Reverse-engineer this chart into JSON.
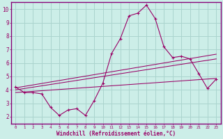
{
  "xlabel": "Windchill (Refroidissement éolien,°C)",
  "background_color": "#cceee8",
  "grid_color": "#aad4ce",
  "line_color": "#990066",
  "border_color": "#880077",
  "xlim": [
    -0.5,
    23.5
  ],
  "ylim": [
    1.5,
    10.5
  ],
  "xticks": [
    0,
    1,
    2,
    3,
    4,
    5,
    6,
    7,
    8,
    9,
    10,
    11,
    12,
    13,
    14,
    15,
    16,
    17,
    18,
    19,
    20,
    21,
    22,
    23
  ],
  "yticks": [
    2,
    3,
    4,
    5,
    6,
    7,
    8,
    9,
    10
  ],
  "x_data": [
    0,
    1,
    2,
    3,
    4,
    5,
    6,
    7,
    8,
    9,
    10,
    11,
    12,
    13,
    14,
    15,
    16,
    17,
    18,
    19,
    20,
    21,
    22,
    23
  ],
  "y_main": [
    4.2,
    3.8,
    3.8,
    3.7,
    2.7,
    2.1,
    2.5,
    2.6,
    2.1,
    3.2,
    4.5,
    6.7,
    7.8,
    9.5,
    9.7,
    10.3,
    9.3,
    7.2,
    6.4,
    6.5,
    6.3,
    5.2,
    4.1,
    4.8
  ],
  "reg1_y0": 4.15,
  "reg1_y1": 6.65,
  "reg2_y0": 4.0,
  "reg2_y1": 6.3,
  "reg3_y0": 3.8,
  "reg3_y1": 4.85
}
